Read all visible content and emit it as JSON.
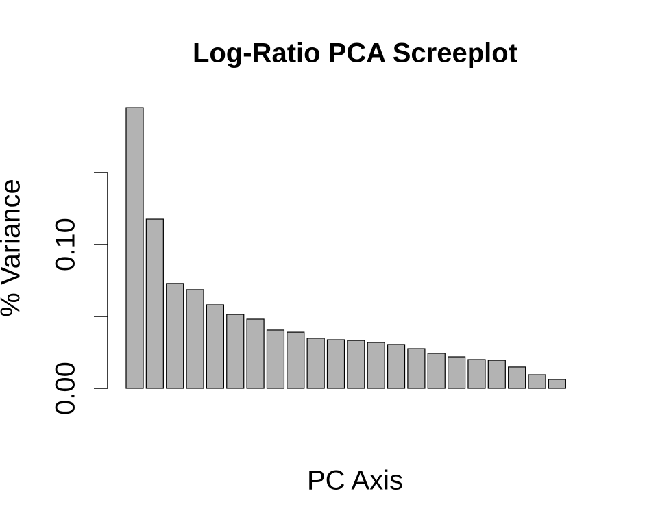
{
  "chart_data": {
    "type": "bar",
    "title": "Log-Ratio PCA Screeplot",
    "x_label": "PC Axis",
    "y_label": "% Variance",
    "categories": [
      null,
      null,
      null,
      null,
      null,
      null,
      null,
      null,
      null,
      null,
      null,
      null,
      null,
      null,
      null,
      null,
      null,
      null,
      null,
      null,
      null,
      null,
      null
    ],
    "values": [
      0.1952,
      0.1176,
      0.0729,
      0.0686,
      0.0581,
      0.0514,
      0.0481,
      0.0405,
      0.039,
      0.0348,
      0.0338,
      0.0333,
      0.0319,
      0.0305,
      0.0276,
      0.0243,
      0.0219,
      0.02,
      0.0195,
      0.0148,
      0.0095,
      0.0062,
      0
    ],
    "color": "#b3b3b3",
    "ylim": [
      0,
      0.2
    ],
    "yticks": [
      {
        "value": 0,
        "label": "0.00"
      },
      {
        "value": 0.05,
        "label": null
      },
      {
        "value": 0.1,
        "label": "0.10"
      },
      {
        "value": 0.15,
        "label": null
      }
    ]
  }
}
